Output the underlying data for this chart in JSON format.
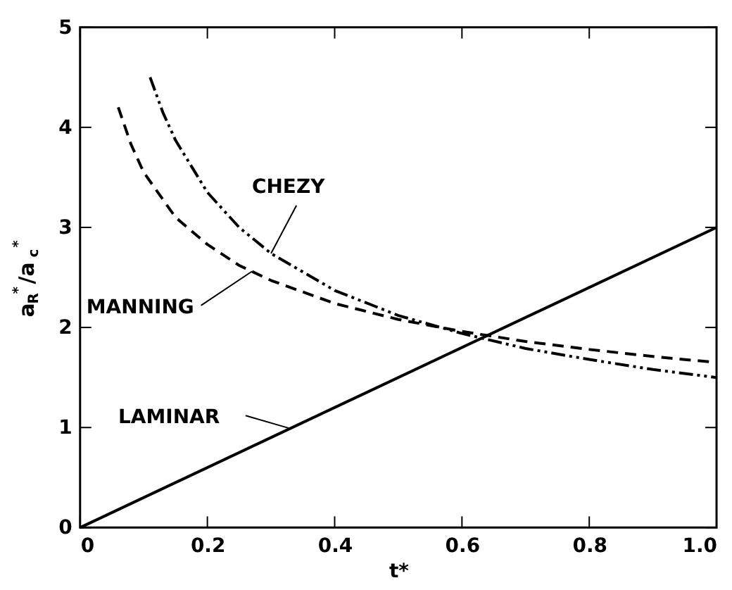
{
  "chart_data": {
    "type": "line",
    "xlabel": "t*",
    "ylabel": "a$_{R}$$^{*}$/a$_{c}$$^{*}$",
    "xlim": [
      0,
      1
    ],
    "ylim": [
      0,
      5
    ],
    "xticks": [
      0,
      0.2,
      0.4,
      0.6,
      0.8,
      {
        "value": 1,
        "label": "1.0"
      }
    ],
    "yticks": [
      0,
      1,
      2,
      3,
      4,
      5
    ],
    "grid": false,
    "marker": "none",
    "series": [
      {
        "name": "LAMINAR",
        "color": "#000000",
        "line_style": "solid",
        "x": [
          0,
          1
        ],
        "values": [
          0,
          3
        ]
      },
      {
        "name": "MANNING",
        "color": "#000000",
        "line_style": "dashed",
        "x": [
          0.06,
          0.08,
          0.1,
          0.15,
          0.2,
          0.25,
          0.3,
          0.4,
          0.5,
          0.6,
          0.7,
          0.8,
          0.9,
          1.0
        ],
        "values": [
          4.2,
          3.83,
          3.55,
          3.1,
          2.83,
          2.62,
          2.47,
          2.24,
          2.08,
          1.96,
          1.86,
          1.78,
          1.71,
          1.65
        ]
      },
      {
        "name": "CHEZY",
        "color": "#000000",
        "line_style": "dotted",
        "x": [
          0.11,
          0.13,
          0.15,
          0.2,
          0.25,
          0.3,
          0.4,
          0.5,
          0.6,
          0.7,
          0.8,
          0.9,
          1.0
        ],
        "values": [
          4.5,
          4.15,
          3.87,
          3.35,
          3.0,
          2.74,
          2.37,
          2.12,
          1.94,
          1.79,
          1.68,
          1.58,
          1.5
        ]
      }
    ]
  }
}
